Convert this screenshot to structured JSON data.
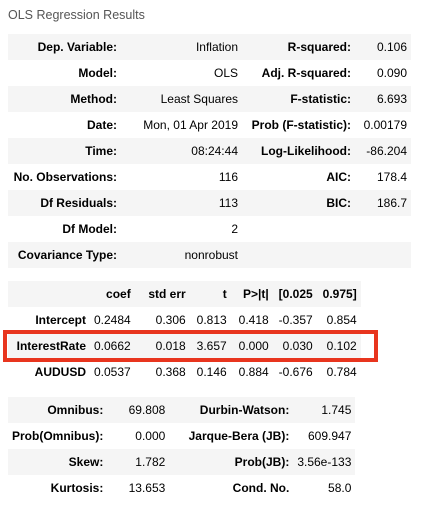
{
  "caption": "OLS Regression Results",
  "summary": {
    "rows": [
      [
        "Dep. Variable:",
        "Inflation",
        "R-squared:",
        "0.106"
      ],
      [
        "Model:",
        "OLS",
        "Adj. R-squared:",
        "0.090"
      ],
      [
        "Method:",
        "Least Squares",
        "F-statistic:",
        "6.693"
      ],
      [
        "Date:",
        "Mon, 01 Apr 2019",
        "Prob (F-statistic):",
        "0.00179"
      ],
      [
        "Time:",
        "08:24:44",
        "Log-Likelihood:",
        "-86.204"
      ],
      [
        "No. Observations:",
        "116",
        "AIC:",
        "178.4"
      ],
      [
        "Df Residuals:",
        "113",
        "BIC:",
        "186.7"
      ],
      [
        "Df Model:",
        "2",
        "",
        ""
      ],
      [
        "Covariance Type:",
        "nonrobust",
        "",
        ""
      ]
    ]
  },
  "coefficients": {
    "headers": [
      "",
      "coef",
      "std err",
      "t",
      "P>|t|",
      "[0.025",
      "0.975]"
    ],
    "rows": [
      [
        "Intercept",
        "0.2484",
        "0.306",
        "0.813",
        "0.418",
        "-0.357",
        "0.854"
      ],
      [
        "InterestRate",
        "0.0662",
        "0.018",
        "3.657",
        "0.000",
        "0.030",
        "0.102"
      ],
      [
        "AUDUSD",
        "0.0537",
        "0.368",
        "0.146",
        "0.884",
        "-0.676",
        "0.784"
      ]
    ]
  },
  "diagnostics": {
    "rows": [
      [
        "Omnibus:",
        "69.808",
        "Durbin-Watson:",
        "1.745"
      ],
      [
        "Prob(Omnibus):",
        "0.000",
        "Jarque-Bera (JB):",
        "609.947"
      ],
      [
        "Skew:",
        "1.782",
        "Prob(JB):",
        "3.56e-133"
      ],
      [
        "Kurtosis:",
        "13.653",
        "Cond. No.",
        "58.0"
      ]
    ]
  },
  "highlight": {
    "row_label": "InterestRate",
    "color": "#e8351e"
  }
}
